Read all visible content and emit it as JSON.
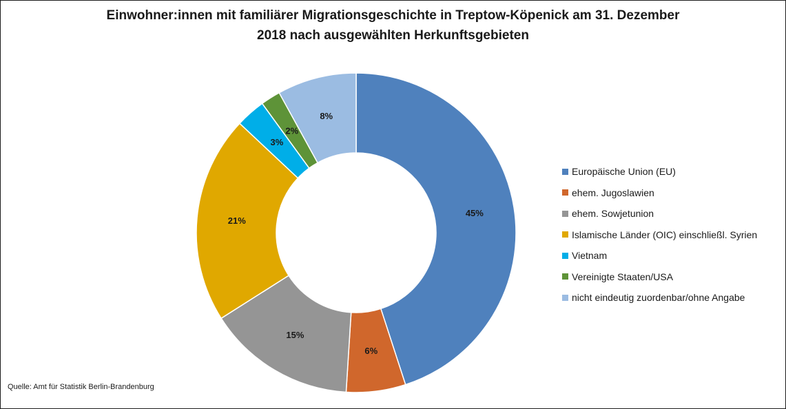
{
  "chart_data": {
    "type": "pie",
    "variant": "donut",
    "title_line1": "Einwohner:innen mit familiärer Migrationsgeschichte in Treptow-Köpenick am 31. Dezember",
    "title_line2": "2018 nach ausgewählten Herkunftsgebieten",
    "legend_position": "right",
    "slices": [
      {
        "label": "Europäische Union (EU)",
        "value": 45,
        "data_label": "45%",
        "color": "#4f81bd"
      },
      {
        "label": "ehem. Jugoslawien",
        "value": 6,
        "data_label": "6%",
        "color": "#d0672c"
      },
      {
        "label": "ehem. Sowjetunion",
        "value": 15,
        "data_label": "15%",
        "color": "#959595"
      },
      {
        "label": "Islamische Länder (OIC) einschließl. Syrien",
        "value": 21,
        "data_label": "21%",
        "color": "#e0a800"
      },
      {
        "label": "Vietnam",
        "value": 3,
        "data_label": "3%",
        "color": "#00aee8"
      },
      {
        "label": "Vereinigte Staaten/USA",
        "value": 2,
        "data_label": "2%",
        "color": "#5e9338"
      },
      {
        "label": "nicht eindeutig zuordenbar/ohne Angabe",
        "value": 8,
        "data_label": "8%",
        "color": "#9bbce2"
      }
    ]
  },
  "source": "Quelle: Amt für Statistik Berlin-Brandenburg"
}
